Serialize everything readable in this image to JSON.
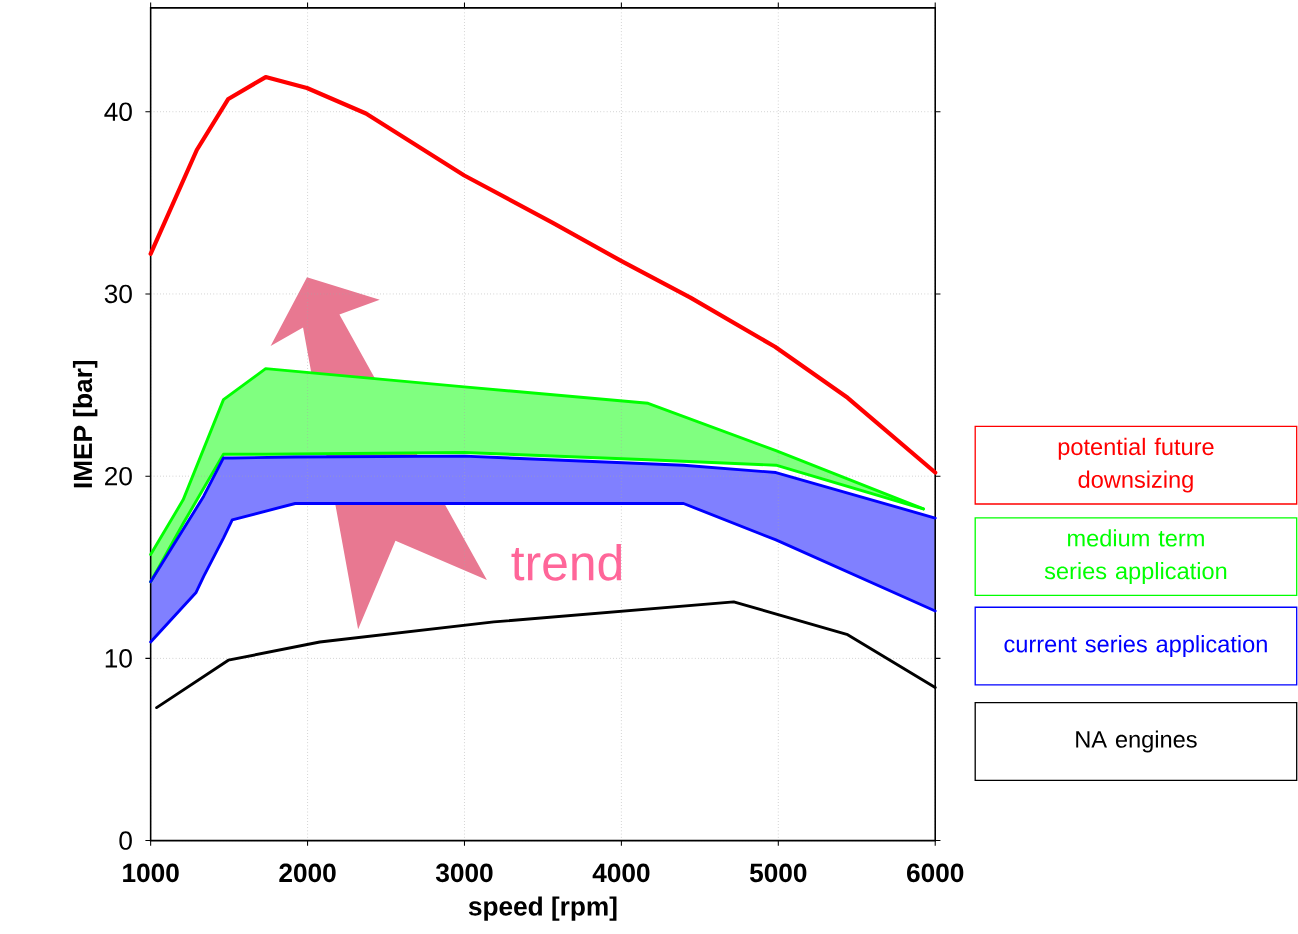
{
  "chart_data": {
    "type": "line",
    "xlabel": "speed [rpm]",
    "ylabel": "IMEP [bar]",
    "xlim": [
      1000,
      6000
    ],
    "ylim": [
      0,
      45.7
    ],
    "xticks": [
      1000,
      2000,
      3000,
      4000,
      5000,
      6000
    ],
    "yticks": [
      0,
      10,
      20,
      30,
      40
    ],
    "grid": true,
    "legend": "right",
    "marker": "none",
    "line_style": "solid",
    "annotations": [
      "trend"
    ],
    "series": [
      {
        "name": "potential future downsizing",
        "type": "line",
        "color": "#ff0000",
        "x": [
          1000,
          1294,
          1495,
          1733,
          1996,
          2372,
          2999,
          3563,
          4001,
          4440,
          4979,
          5442,
          6000
        ],
        "values": [
          32.2,
          37.9,
          40.7,
          41.9,
          41.3,
          39.9,
          36.5,
          33.9,
          31.8,
          29.8,
          27.1,
          24.3,
          20.2
        ]
      },
      {
        "name": "medium term series application",
        "color": "#00ff00",
        "x": [
          1000,
          1207,
          1464,
          1733,
          2999,
          4170,
          4985,
          5925
        ],
        "values": [
          15.7,
          18.7,
          24.2,
          25.9,
          24.9,
          24.0,
          21.4,
          18.2
        ]
      },
      {
        "color": "#00ff00",
        "x": [
          1000,
          1207,
          1464,
          1733,
          2999,
          4170,
          4985,
          5925
        ],
        "values": [
          14.2,
          17.4,
          21.2,
          21.2,
          21.3,
          20.9,
          20.6,
          18.2
        ]
      },
      {
        "name": "current series application",
        "color": "#0000ff",
        "x": [
          1000,
          1288,
          1338,
          1464,
          1520,
          1921,
          2999,
          4396,
          4985,
          6000
        ],
        "values": [
          14.2,
          18.2,
          18.9,
          21.0,
          21.0,
          21.05,
          21.1,
          20.6,
          20.2,
          17.7
        ]
      },
      {
        "color": "#0000ff",
        "x": [
          1000,
          1288,
          1338,
          1464,
          1520,
          1921,
          2999,
          4396,
          4985,
          6000
        ],
        "values": [
          10.9,
          13.6,
          14.5,
          16.6,
          17.6,
          18.5,
          18.5,
          18.5,
          16.5,
          12.6
        ]
      },
      {
        "name": "NA engines",
        "type": "line",
        "color": "#000000",
        "x": [
          1038,
          1495,
          2078,
          3187,
          4716,
          5442,
          6000
        ],
        "values": [
          7.3,
          9.9,
          10.9,
          12.0,
          13.1,
          11.3,
          8.4
        ]
      }
    ]
  }
}
